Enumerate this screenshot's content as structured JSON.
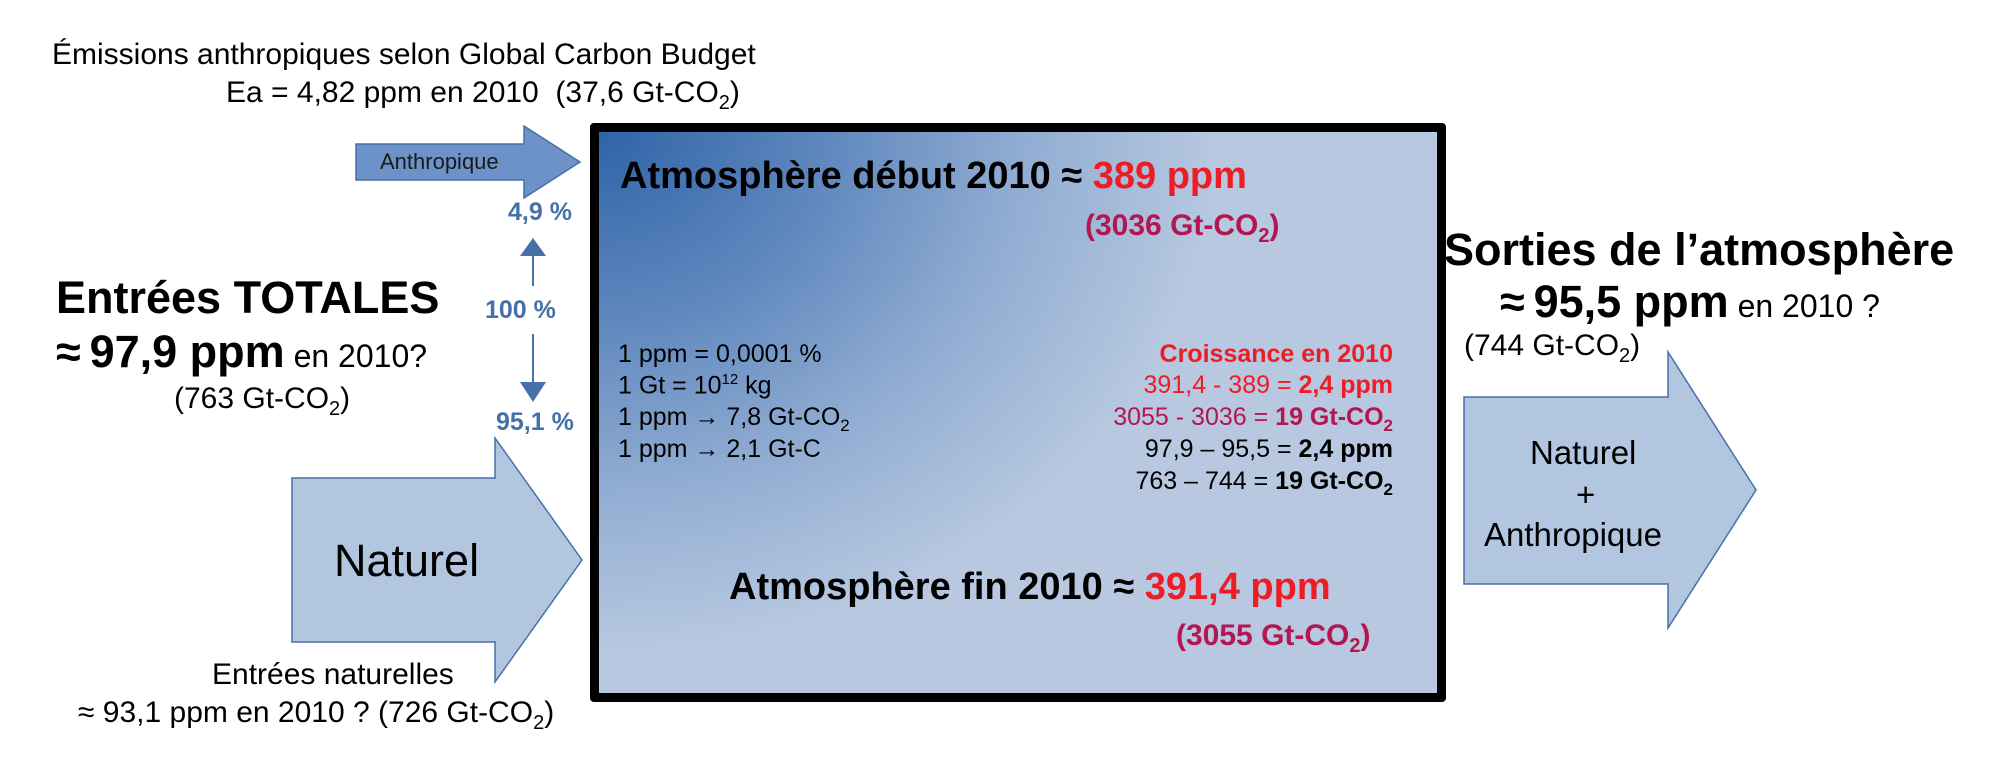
{
  "anthropogenic": {
    "title": "Émissions anthropiques selon Global Carbon Budget",
    "value_ppm": "Ea = 4,82 ppm en 2010",
    "value_gt": "(37,6 Gt-CO",
    "value_gt_sub": "2",
    "value_gt_close": ")",
    "arrow_label": "Anthropique",
    "share": "4,9 %"
  },
  "totals": {
    "share": "100 %",
    "title": "Entrées TOTALES",
    "approx": "≈",
    "value": "97,9 ppm",
    "suffix": "en 2010?",
    "gt": "(763 Gt-CO",
    "gt_sub": "2",
    "gt_close": ")"
  },
  "natural": {
    "share": "95,1 %",
    "arrow_label": "Naturel",
    "title": "Entrées naturelles",
    "value": "≈ 93,1 ppm en 2010 ?  (726 Gt-CO",
    "value_sub": "2",
    "value_close": ")"
  },
  "atmosphere": {
    "start_label": "Atmosphère début 2010 ≈ ",
    "start_value": "389 ppm",
    "start_gt": "(3036 Gt-CO",
    "start_gt_sub": "2",
    "start_gt_close": ")",
    "conversions": {
      "c1": "1 ppm = 0,0001 %",
      "c2_a": "1 Gt = 10",
      "c2_sup": "12",
      "c2_b": " kg",
      "c3_a": "1 ppm → 7,8 Gt-CO",
      "c3_sub": "2",
      "c4": "1 ppm →  2,1 Gt-C"
    },
    "growth": {
      "title": "Croissance en 2010",
      "ppm_calc": "391,4 - 389 = ",
      "ppm_result": "2,4 ppm",
      "gt_calc": "3055 - 3036 = ",
      "gt_result": "19 Gt-CO",
      "gt_result_sub": "2",
      "ppm2_calc": "97,9 – 95,5 = ",
      "ppm2_result": "2,4 ppm",
      "gt2_calc": "763 – 744 = ",
      "gt2_result": "19 Gt-CO",
      "gt2_result_sub": "2"
    },
    "end_label": "Atmosphère fin 2010  ≈ ",
    "end_value": "391,4 ppm",
    "end_gt": "(3055 Gt-CO",
    "end_gt_sub": "2",
    "end_gt_close": ")"
  },
  "outputs": {
    "title": "Sorties de l’atmosphère",
    "approx": "≈",
    "value": "95,5 ppm",
    "suffix": "en 2010 ?",
    "gt": "(744 Gt-CO",
    "gt_sub": "2",
    "gt_close": ")",
    "arrow_line1": "Naturel",
    "arrow_plus": "+",
    "arrow_line2": "Anthropique"
  },
  "colors": {
    "arrow_fill": "#b3c6e0",
    "arrow_stroke": "#4670a8",
    "small_arrow_fill": "#6d92c8",
    "percent": "#4670a8",
    "red": "#ee1c24",
    "crimson": "#b5164f"
  }
}
